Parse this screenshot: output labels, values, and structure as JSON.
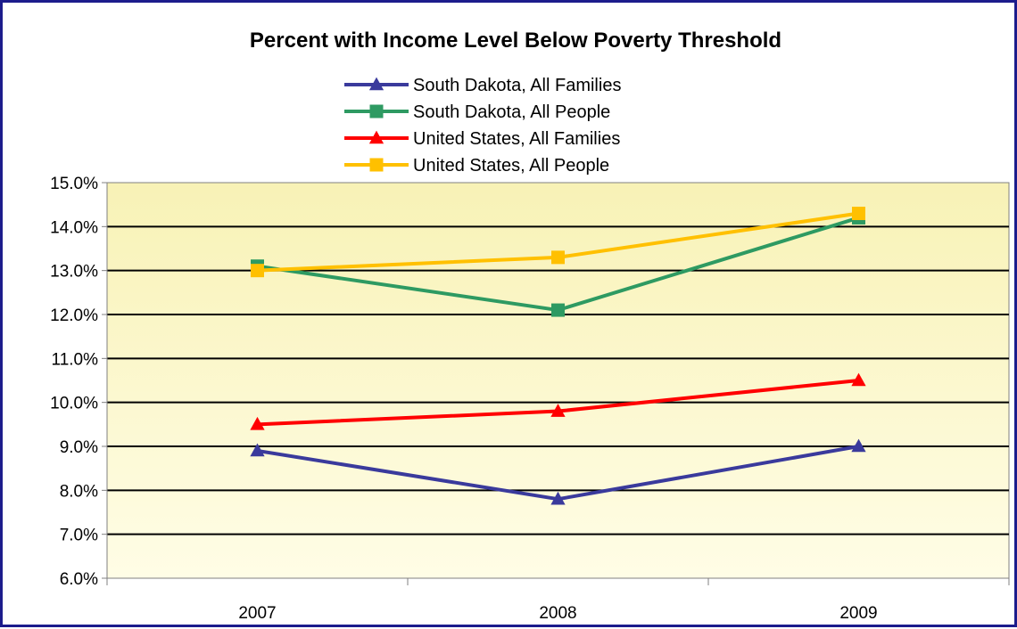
{
  "chart_data": {
    "type": "line",
    "title": "Percent with Income Level Below Poverty Threshold",
    "categories": [
      "2007",
      "2008",
      "2009"
    ],
    "y_ticks": [
      "6.0%",
      "7.0%",
      "8.0%",
      "9.0%",
      "10.0%",
      "11.0%",
      "12.0%",
      "13.0%",
      "14.0%",
      "15.0%"
    ],
    "ylim": [
      6.0,
      15.0
    ],
    "y_unit": "percent",
    "grid": true,
    "legend_position": "top-center",
    "plot_background": "#fbf8c8",
    "series": [
      {
        "name": "South Dakota, All Families",
        "values": [
          8.9,
          7.8,
          9.0
        ],
        "color": "#3a3a9c",
        "marker": "triangle"
      },
      {
        "name": "South Dakota, All People",
        "values": [
          13.1,
          12.1,
          14.2
        ],
        "color": "#2e9a62",
        "marker": "square"
      },
      {
        "name": "United States, All Families",
        "values": [
          9.5,
          9.8,
          10.5
        ],
        "color": "#ff0000",
        "marker": "triangle"
      },
      {
        "name": "United States, All People",
        "values": [
          13.0,
          13.3,
          14.3
        ],
        "color": "#ffc000",
        "marker": "square"
      }
    ]
  }
}
